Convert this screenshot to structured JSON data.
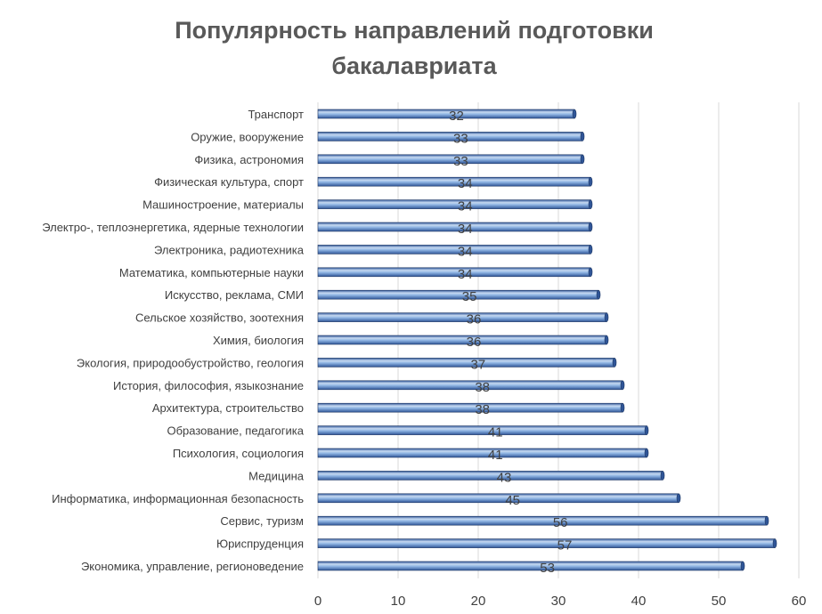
{
  "chart_data": {
    "type": "bar",
    "orientation": "horizontal",
    "style": "3d-cylinder",
    "title": "Популярность направлений подготовки бакалавриата",
    "title_lines": [
      "Популярность направлений подготовки",
      "бакалавриата"
    ],
    "categories": [
      "Транспорт",
      "Оружие, вооружение",
      "Физика, астрономия",
      "Физическая культура, спорт",
      "Машиностроение, материалы",
      "Электро-, теплоэнергетика, ядерные технологии",
      "Электроника, радиотехника",
      "Математика, компьютерные науки",
      "Искусство, реклама, СМИ",
      "Сельское хозяйство, зоотехния",
      "Химия, биология",
      "Экология, природообустройство, геология",
      "История, философия, языкознание",
      "Архитектура, строительство",
      "Образование, педагогика",
      "Психология, социология",
      "Медицина",
      "Информатика, информационная безопасность",
      "Сервис, туризм",
      "Юриспруденция",
      "Экономика, управление, регионоведение"
    ],
    "values": [
      32,
      33,
      33,
      34,
      34,
      34,
      34,
      34,
      35,
      36,
      36,
      37,
      38,
      38,
      41,
      41,
      43,
      45,
      56,
      57,
      53
    ],
    "data_labels": [
      "32",
      "33",
      "33",
      "34",
      "34",
      "34",
      "34",
      "34",
      "35",
      "36",
      "36",
      "37",
      "38",
      "38",
      "41",
      "41",
      "43",
      "45",
      "56",
      "57",
      "53"
    ],
    "xlim": [
      0,
      60
    ],
    "xticks": [
      "0",
      "10",
      "20",
      "30",
      "40",
      "50",
      "60"
    ],
    "xlabel": "",
    "ylabel": "",
    "grid": true,
    "legend": "none",
    "colors": {
      "bar_light": "#c6d9f1",
      "bar_mid": "#8eb4e3",
      "bar_dark": "#2f5597",
      "bar_outline": "#1f3864",
      "title": "#595959",
      "text": "#404040",
      "gridline": "#d9d9d9"
    }
  }
}
